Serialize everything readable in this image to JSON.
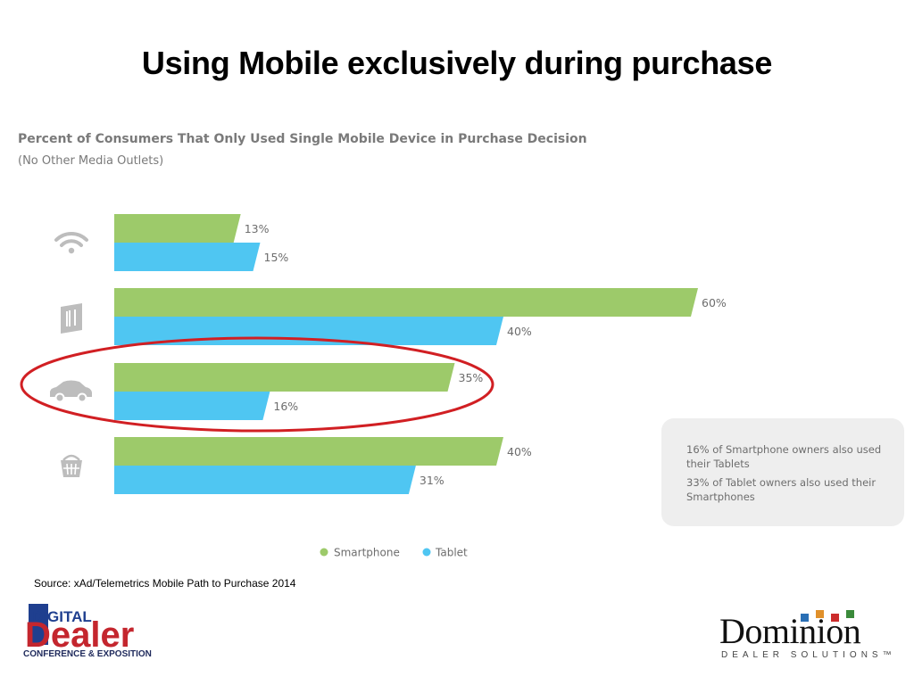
{
  "slide": {
    "title": "Using Mobile exclusively during purchase",
    "source": "Source: xAd/Telemetrics Mobile Path to Purchase 2014"
  },
  "chart_data": {
    "type": "bar",
    "orientation": "horizontal",
    "title": "Percent of Consumers That Only Used Single Mobile Device in Purchase Decision",
    "subtitle": "(No Other Media Outlets)",
    "categories": [
      "wifi-icon",
      "restaurant-icon",
      "auto-icon",
      "grocery-basket-icon"
    ],
    "series": [
      {
        "name": "Smartphone",
        "color": "#9dca6a",
        "values": [
          13,
          60,
          35,
          40
        ],
        "labels": [
          "13%",
          "60%",
          "35%",
          "40%"
        ]
      },
      {
        "name": "Tablet",
        "color": "#4fc6f2",
        "values": [
          15,
          40,
          16,
          31
        ],
        "labels": [
          "15%",
          "40%",
          "16%",
          "31%"
        ]
      }
    ],
    "xlim": [
      0,
      60
    ],
    "grid": false,
    "legend_position": "bottom",
    "highlighted_category": "auto-icon",
    "highlight_color": "#d11f23"
  },
  "note_box": {
    "line1": "16% of Smartphone owners also used their Tablets",
    "line2": "33% of Tablet owners also used their Smartphones"
  },
  "logos": {
    "digital_dealer_top": "DIGITAL",
    "digital_dealer_main": "Dealer",
    "digital_dealer_caption": "CONFERENCE & EXPOSITION",
    "dominion_word": "Dominion",
    "dominion_sub": "DEALER SOLUTIONS™"
  }
}
